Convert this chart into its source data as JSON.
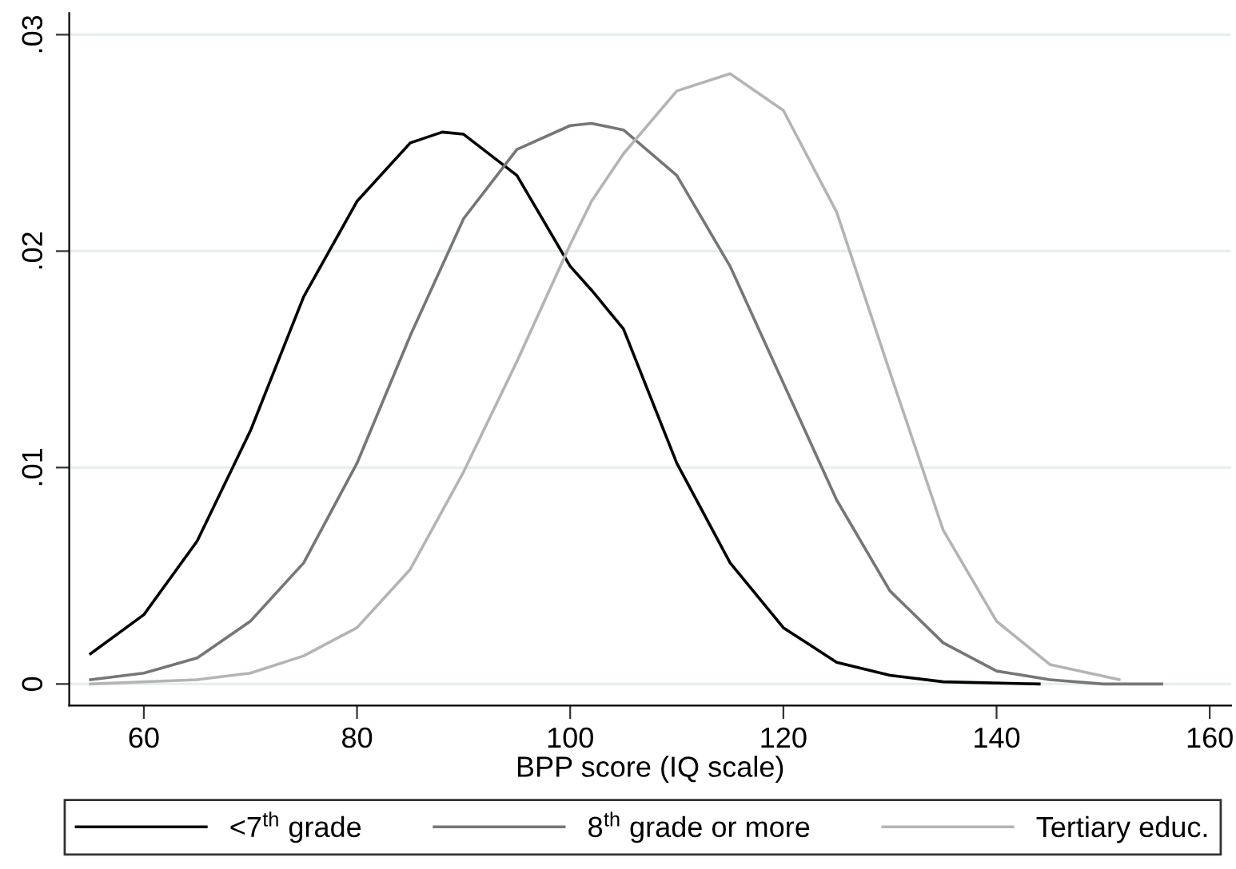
{
  "chart_data": {
    "type": "line",
    "xlabel": "BPP score (IQ scale)",
    "xlim": [
      53,
      162
    ],
    "xticks": [
      60,
      80,
      100,
      120,
      140,
      160
    ],
    "ylim": [
      -0.001,
      0.031
    ],
    "yticks": [
      {
        "value": 0,
        "label": "0"
      },
      {
        "value": 0.01,
        "label": ".01"
      },
      {
        "value": 0.02,
        "label": ".02"
      },
      {
        "value": 0.03,
        "label": ".03"
      }
    ],
    "grid": "y",
    "legend": "bottom",
    "marker": "none",
    "line_style": "solid",
    "series": [
      {
        "name": "<7$^{th}$ grade",
        "color": "#000000",
        "x": [
          55,
          60,
          65,
          70,
          75,
          80,
          85,
          88,
          90,
          95,
          100,
          102,
          105,
          110,
          115,
          120,
          125,
          130,
          135,
          144
        ],
        "values": [
          0.0014,
          0.0032,
          0.0066,
          0.0117,
          0.0179,
          0.0223,
          0.025,
          0.0255,
          0.0254,
          0.0235,
          0.0193,
          0.0182,
          0.0164,
          0.0102,
          0.0056,
          0.0026,
          0.001,
          0.0004,
          0.0001,
          0.0
        ]
      },
      {
        "name": "8$^{th}$ grade or more",
        "color": "#767676",
        "x": [
          55,
          60,
          65,
          70,
          75,
          80,
          85,
          90,
          95,
          100,
          102,
          105,
          110,
          115,
          120,
          125,
          130,
          135,
          140,
          145,
          150,
          155.5
        ],
        "values": [
          0.0002,
          0.0005,
          0.0012,
          0.0029,
          0.0056,
          0.0102,
          0.0161,
          0.0215,
          0.0247,
          0.0258,
          0.0259,
          0.0256,
          0.0235,
          0.0193,
          0.0139,
          0.0085,
          0.0043,
          0.0019,
          0.0006,
          0.0002,
          0.0,
          0.0
        ]
      },
      {
        "name": "Tertiary educ.",
        "color": "#b4b4b4",
        "x": [
          55,
          65,
          70,
          75,
          80,
          85,
          90,
          95,
          100,
          102,
          105,
          110,
          115,
          120,
          125,
          130,
          135,
          140,
          145,
          151.5
        ],
        "values": [
          0.0,
          0.0002,
          0.0005,
          0.0013,
          0.0026,
          0.0053,
          0.0098,
          0.0149,
          0.0203,
          0.0223,
          0.0245,
          0.0274,
          0.0282,
          0.0265,
          0.0218,
          0.0144,
          0.0071,
          0.0029,
          0.0009,
          0.0002
        ]
      }
    ]
  }
}
